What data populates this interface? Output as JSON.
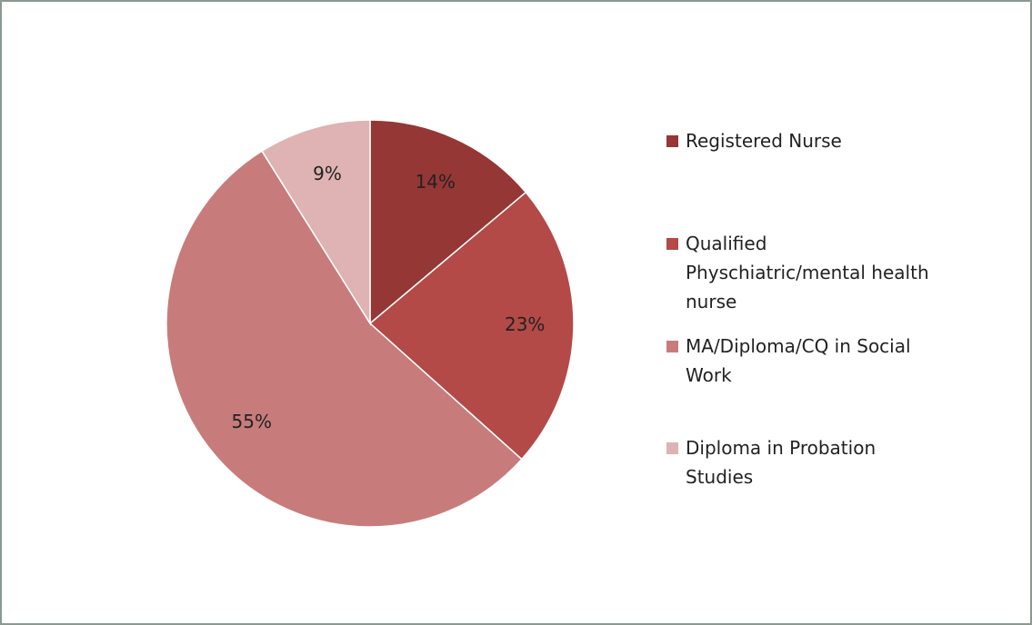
{
  "chart_data": {
    "type": "pie",
    "categories": [
      "Registered Nurse",
      "Qualified Physchiatric/mental health nurse",
      "MA/Diploma/CQ in Social Work",
      "Diploma in Probation Studies"
    ],
    "values": [
      14,
      23,
      55,
      9
    ],
    "value_labels": [
      "14%",
      "23%",
      "55%",
      "9%"
    ],
    "colors": [
      "#953735",
      "#b34a47",
      "#c77c7b",
      "#dfb3b3"
    ],
    "legend": "right"
  }
}
